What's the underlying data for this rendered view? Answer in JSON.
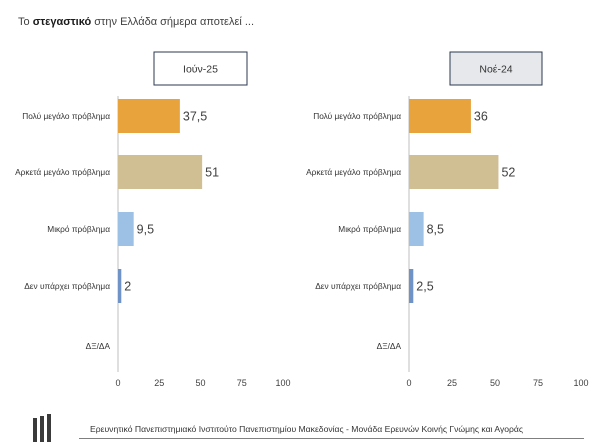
{
  "heading": {
    "prefix": "Το ",
    "bold": "στεγαστικό",
    "suffix": " στην Ελλάδα σήμερα αποτελεί ..."
  },
  "footer": {
    "text": "Ερευνητικό Πανεπιστημιακό Ινστιτούτο Πανεπιστημίου Μακεδονίας - Μονάδα Ερευνών Κοινής Γνώμης και Αγοράς"
  },
  "colors": {
    "orange": "#E8A33C",
    "khaki": "#CFBF92",
    "lightblue": "#9DC1E4",
    "blue": "#6F93C7",
    "header_gray": "#E6E8EB",
    "header_border": "#2B3A4F"
  },
  "chart_data": [
    {
      "type": "bar",
      "orientation": "horizontal",
      "title": "Ιούν-25",
      "categories": [
        "Πολύ μεγάλο πρόβλημα",
        "Αρκετά μεγάλο πρόβλημα",
        "Μικρό πρόβλημα",
        "Δεν υπάρχει πρόβλημα",
        "ΔΞ/ΔΑ"
      ],
      "values": [
        37.5,
        51,
        9.5,
        2,
        null
      ],
      "value_labels": [
        "37,5",
        "51",
        "9,5",
        "2",
        ""
      ],
      "bar_colors": [
        "#E8A33C",
        "#CFBF92",
        "#9DC1E4",
        "#6F93C7",
        "#6F93C7"
      ],
      "xlim": [
        0,
        100
      ],
      "xticks": [
        0,
        25,
        50,
        75,
        100
      ],
      "grid": false
    },
    {
      "type": "bar",
      "orientation": "horizontal",
      "title": "Νοέ-24",
      "categories": [
        "Πολύ μεγάλο πρόβλημα",
        "Αρκετά μεγάλο πρόβλημα",
        "Μικρό πρόβλημα",
        "Δεν υπάρχει πρόβλημα",
        "ΔΞ/ΔΑ"
      ],
      "values": [
        36,
        52,
        8.5,
        2.5,
        null
      ],
      "value_labels": [
        "36",
        "52",
        "8,5",
        "2,5",
        ""
      ],
      "bar_colors": [
        "#E8A33C",
        "#CFBF92",
        "#9DC1E4",
        "#6F93C7",
        "#6F93C7"
      ],
      "xlim": [
        0,
        100
      ],
      "xticks": [
        0,
        25,
        50,
        75,
        100
      ],
      "grid": false
    }
  ]
}
